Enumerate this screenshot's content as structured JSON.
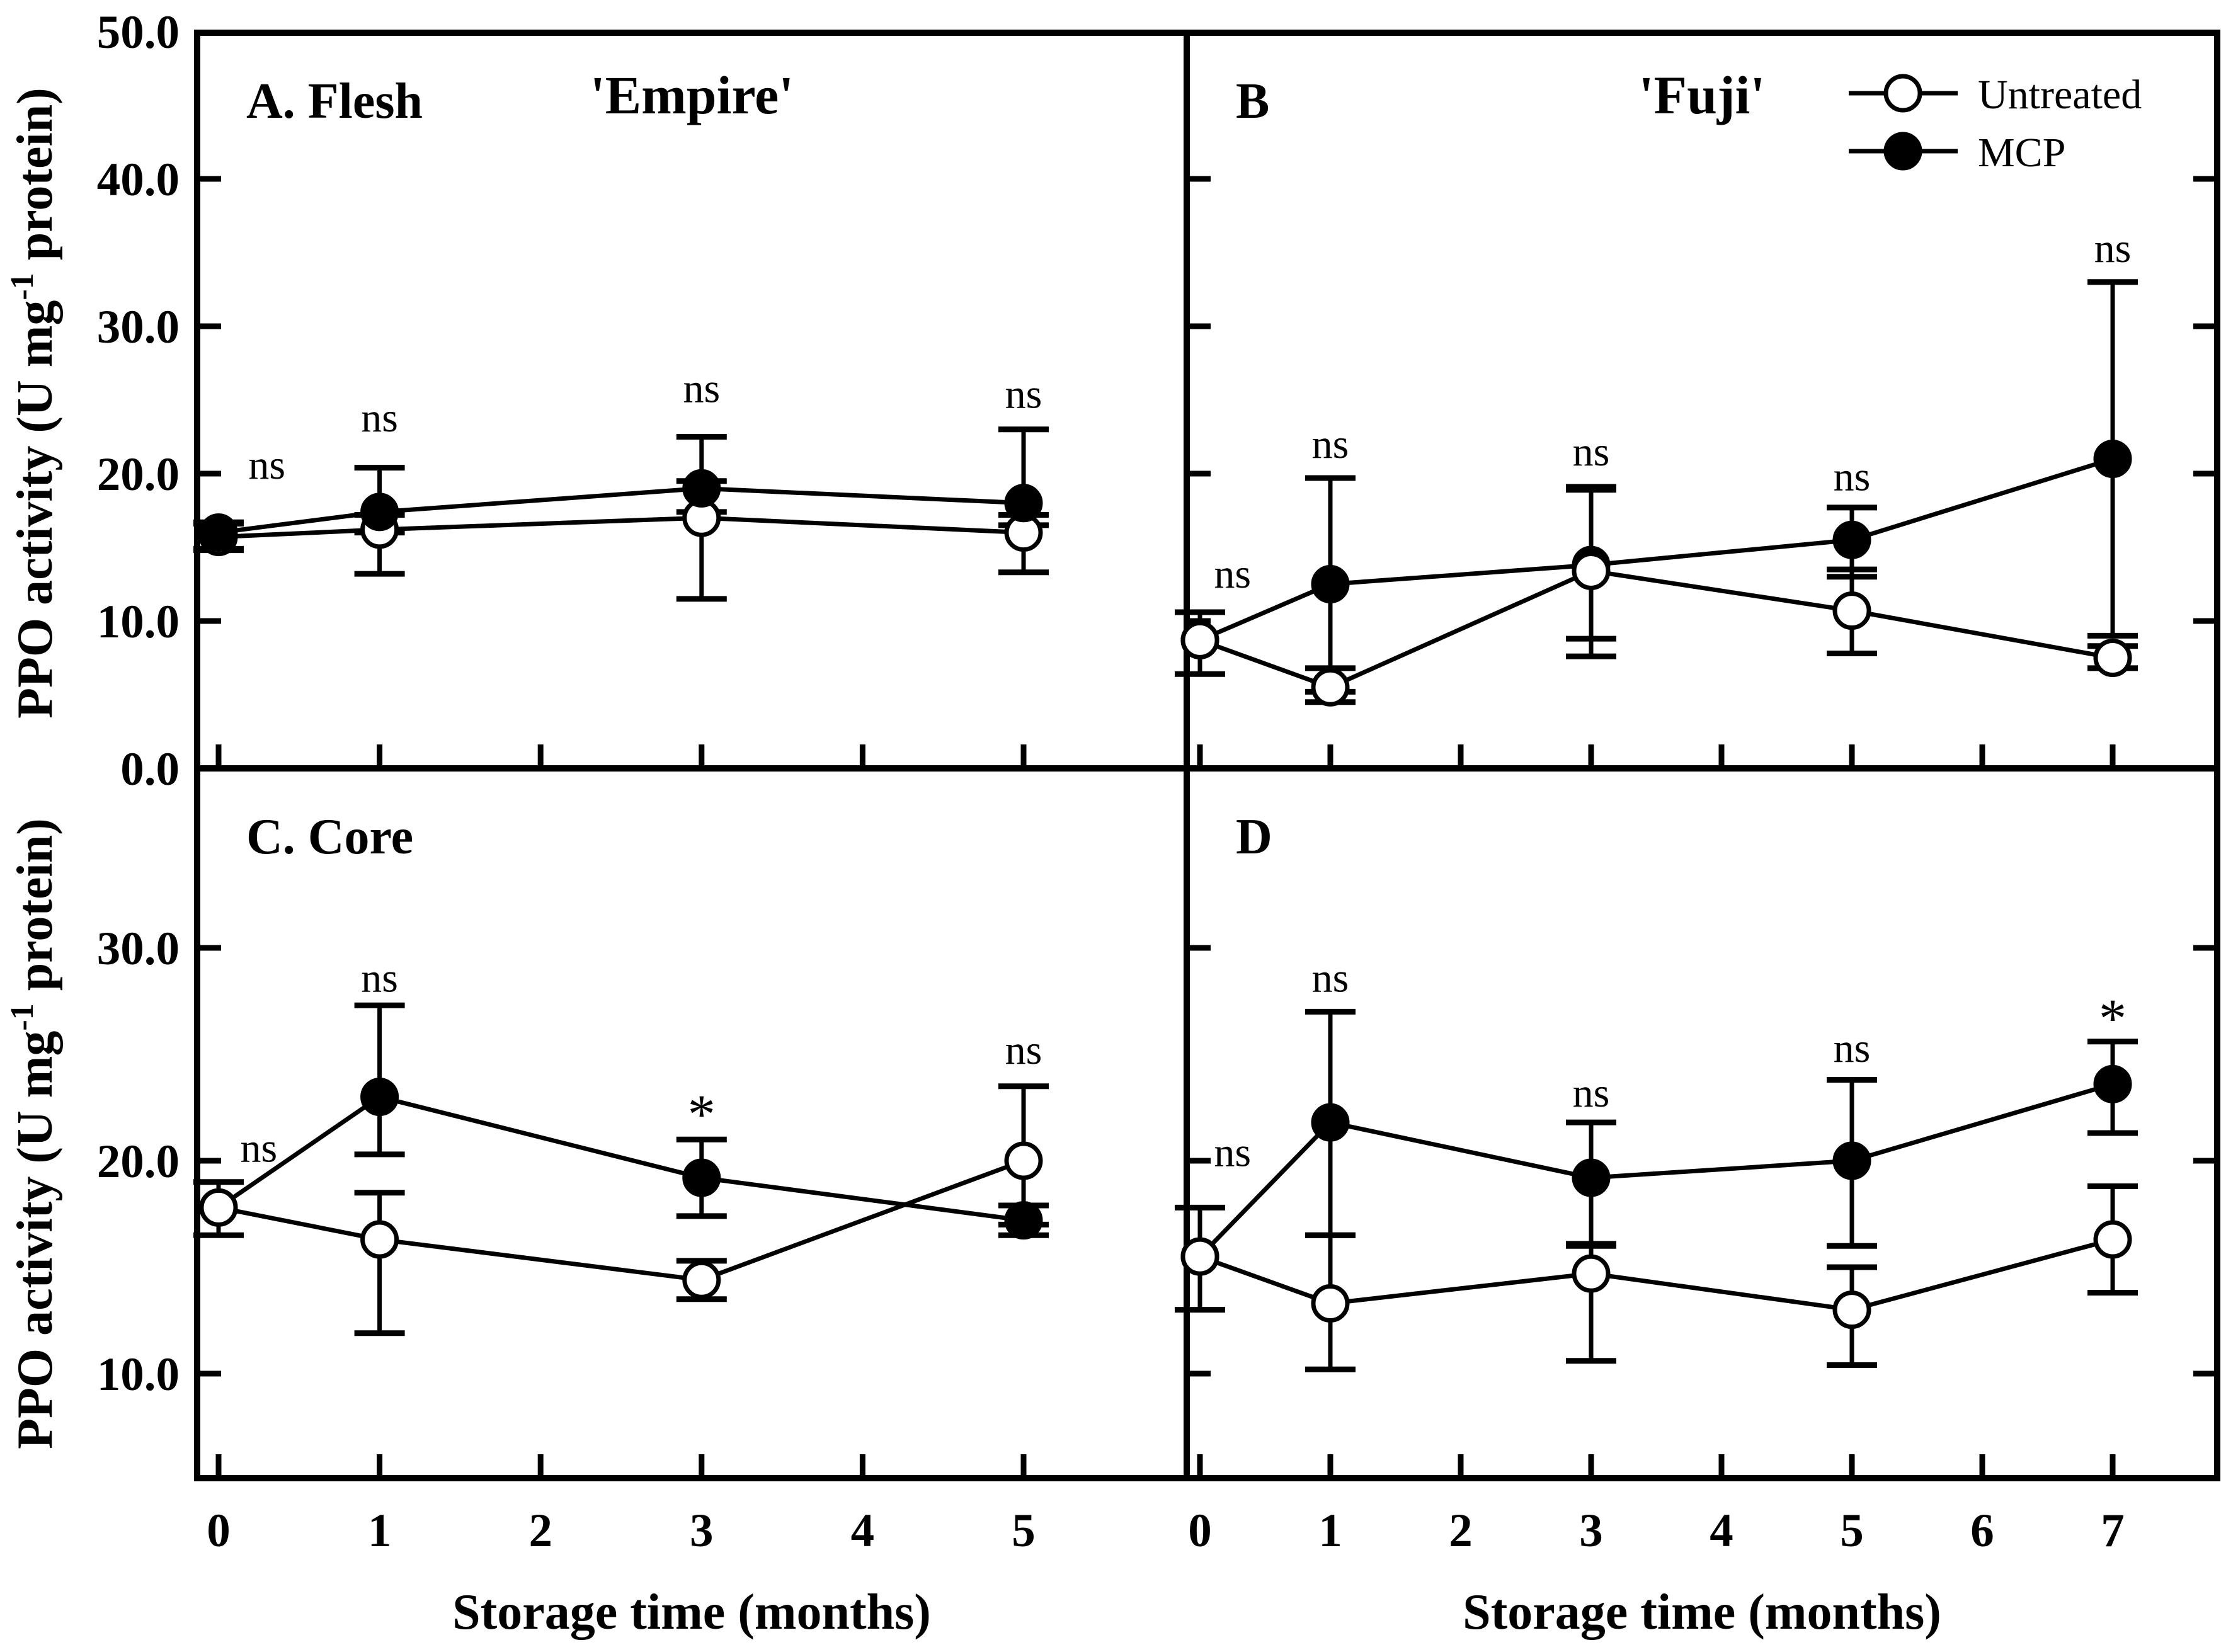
{
  "figure": {
    "x_axis_label": "Storage time (months)",
    "y_axis_label_pre": "PPO activity (U mg",
    "y_axis_label_sup": "-1",
    "y_axis_label_post": " protein)",
    "foreground_color": "#000000",
    "background_color": "#ffffff"
  },
  "legend": {
    "items": [
      {
        "label": "Untreated",
        "marker": "open-circle-icon"
      },
      {
        "label": "MCP",
        "marker": "filled-circle-icon"
      }
    ]
  },
  "chart_data": [
    {
      "type": "line",
      "panel": "A",
      "panel_label": "A. Flesh",
      "title": "'Empire'",
      "cultivar": "Empire",
      "tissue": "Flesh",
      "xlabel": "Storage time (months)",
      "ylabel": "PPO activity (U mg-1 protein)",
      "x": [
        0,
        1,
        3,
        5
      ],
      "ylim": [
        0,
        50
      ],
      "yticks": [
        10,
        20,
        30,
        40
      ],
      "ytick_labels": [
        {
          "v": 0,
          "t": "0.0"
        },
        {
          "v": 10,
          "t": "10.0"
        },
        {
          "v": 20,
          "t": "20.0"
        },
        {
          "v": 30,
          "t": "30.0"
        },
        {
          "v": 40,
          "t": "40.0"
        },
        {
          "v": 50,
          "t": "50.0"
        }
      ],
      "xticks": [
        0,
        1,
        2,
        3,
        4,
        5
      ],
      "xtick_labels": [],
      "series": [
        {
          "name": "Untreated",
          "marker": "open",
          "values": [
            15.7,
            16.2,
            17.0,
            16.0
          ],
          "err_up": [
            0.9,
            1.0,
            2.5,
            1.2
          ],
          "err_dn": [
            0.9,
            3.0,
            5.5,
            2.7
          ]
        },
        {
          "name": "MCP",
          "marker": "filled",
          "values": [
            16.0,
            17.4,
            19.0,
            18.0
          ],
          "err_up": [
            0.7,
            3.0,
            3.5,
            5.0
          ],
          "err_dn": [
            1.1,
            1.4,
            1.6,
            1.5
          ]
        }
      ],
      "significance": [
        {
          "x": 0.3,
          "y": 20.6,
          "label": "ns"
        },
        {
          "x": 1,
          "y": 23.8,
          "label": "ns"
        },
        {
          "x": 3,
          "y": 25.8,
          "label": "ns"
        },
        {
          "x": 5,
          "y": 25.4,
          "label": "ns"
        }
      ]
    },
    {
      "type": "line",
      "panel": "B",
      "panel_label": "B",
      "title": "'Fuji'",
      "cultivar": "Fuji",
      "tissue": "Flesh",
      "xlabel": "Storage time (months)",
      "ylabel": "PPO activity (U mg-1 protein)",
      "x": [
        0,
        1,
        3,
        5,
        7
      ],
      "ylim": [
        0,
        50
      ],
      "yticks": [
        10,
        20,
        30,
        40
      ],
      "ytick_labels": [],
      "xticks": [
        0,
        1,
        2,
        3,
        4,
        5,
        6,
        7
      ],
      "xtick_labels": [],
      "series": [
        {
          "name": "Untreated",
          "marker": "open",
          "values": [
            8.7,
            5.5,
            13.4,
            10.7,
            7.5
          ],
          "err_up": [
            1.9,
            1.3,
            5.5,
            2.8,
            0.8
          ],
          "err_dn": [
            2.3,
            1.0,
            5.8,
            2.9,
            0.7
          ]
        },
        {
          "name": "MCP",
          "marker": "filled",
          "values": [
            8.7,
            12.5,
            13.8,
            15.5,
            21.0
          ],
          "err_up": [
            0,
            7.2,
            5.3,
            2.2,
            12.0
          ],
          "err_dn": [
            0,
            7.3,
            5.0,
            2.5,
            12.0
          ]
        }
      ],
      "significance": [
        {
          "x": 0.25,
          "y": 13.2,
          "label": "ns"
        },
        {
          "x": 1,
          "y": 22.0,
          "label": "ns"
        },
        {
          "x": 3,
          "y": 21.5,
          "label": "ns"
        },
        {
          "x": 5,
          "y": 19.8,
          "label": "ns"
        },
        {
          "x": 7,
          "y": 35.3,
          "label": "ns"
        }
      ]
    },
    {
      "type": "line",
      "panel": "C",
      "panel_label": "C. Core",
      "title": "",
      "cultivar": "Empire",
      "tissue": "Core",
      "xlabel": "Storage time (months)",
      "ylabel": "PPO activity (U mg-1 protein)",
      "x": [
        0,
        1,
        3,
        5
      ],
      "ylim": [
        5,
        38.5
      ],
      "yticks": [
        10,
        20,
        30
      ],
      "ytick_labels": [
        {
          "v": 10,
          "t": "10.0"
        },
        {
          "v": 20,
          "t": "20.0"
        },
        {
          "v": 30,
          "t": "30.0"
        }
      ],
      "xticks": [
        0,
        1,
        2,
        3,
        4,
        5
      ],
      "xtick_labels": [
        {
          "v": 0,
          "t": "0"
        },
        {
          "v": 1,
          "t": "1"
        },
        {
          "v": 2,
          "t": "2"
        },
        {
          "v": 3,
          "t": "3"
        },
        {
          "v": 4,
          "t": "4"
        },
        {
          "v": 5,
          "t": "5"
        }
      ],
      "series": [
        {
          "name": "Untreated",
          "marker": "open",
          "values": [
            17.8,
            16.3,
            14.4,
            20.0
          ],
          "err_up": [
            1.2,
            2.2,
            0.9,
            3.5
          ],
          "err_dn": [
            1.3,
            4.4,
            0.9,
            3.0
          ]
        },
        {
          "name": "MCP",
          "marker": "filled",
          "values": [
            17.8,
            23.0,
            19.2,
            17.2
          ],
          "err_up": [
            0,
            4.3,
            1.8,
            0.7
          ],
          "err_dn": [
            0,
            2.7,
            1.8,
            0.7
          ]
        }
      ],
      "significance": [
        {
          "x": 0.25,
          "y": 20.6,
          "label": "ns"
        },
        {
          "x": 1,
          "y": 28.6,
          "label": "ns"
        },
        {
          "x": 3,
          "y": 22.5,
          "label": "*"
        },
        {
          "x": 5,
          "y": 25.2,
          "label": "ns"
        }
      ]
    },
    {
      "type": "line",
      "panel": "D",
      "panel_label": "D",
      "title": "",
      "cultivar": "Fuji",
      "tissue": "Core",
      "xlabel": "Storage time (months)",
      "ylabel": "PPO activity (U mg-1 protein)",
      "x": [
        0,
        1,
        3,
        5,
        7
      ],
      "ylim": [
        5,
        38.5
      ],
      "yticks": [
        10,
        20,
        30
      ],
      "ytick_labels": [],
      "xticks": [
        0,
        1,
        2,
        3,
        4,
        5,
        6,
        7
      ],
      "xtick_labels": [
        {
          "v": 0,
          "t": "0"
        },
        {
          "v": 1,
          "t": "1"
        },
        {
          "v": 2,
          "t": "2"
        },
        {
          "v": 3,
          "t": "3"
        },
        {
          "v": 4,
          "t": "4"
        },
        {
          "v": 5,
          "t": "5"
        },
        {
          "v": 6,
          "t": "6"
        },
        {
          "v": 7,
          "t": "7"
        }
      ],
      "series": [
        {
          "name": "Untreated",
          "marker": "open",
          "values": [
            15.5,
            13.3,
            14.7,
            13.0,
            16.3
          ],
          "err_up": [
            2.3,
            3.2,
            1.4,
            2.0,
            2.5
          ],
          "err_dn": [
            2.5,
            3.1,
            4.1,
            2.6,
            2.5
          ]
        },
        {
          "name": "MCP",
          "marker": "filled",
          "values": [
            15.5,
            21.8,
            19.2,
            20.0,
            23.6
          ],
          "err_up": [
            0,
            5.2,
            2.6,
            3.8,
            2.0
          ],
          "err_dn": [
            0,
            5.3,
            3.2,
            4.0,
            2.3
          ]
        }
      ],
      "significance": [
        {
          "x": 0.25,
          "y": 20.4,
          "label": "ns"
        },
        {
          "x": 1,
          "y": 28.6,
          "label": "ns"
        },
        {
          "x": 3,
          "y": 23.2,
          "label": "ns"
        },
        {
          "x": 5,
          "y": 25.3,
          "label": "ns"
        },
        {
          "x": 7,
          "y": 27.0,
          "label": "*"
        }
      ]
    }
  ]
}
